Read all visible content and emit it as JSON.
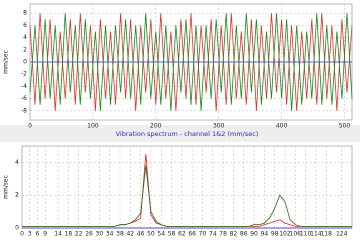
{
  "chart_data": [
    {
      "type": "line",
      "y_label": "mm/sec",
      "xlim": [
        0,
        512
      ],
      "ylim": [
        -9.5,
        9.5
      ],
      "xticks": [
        0,
        100,
        200,
        300,
        400,
        500
      ],
      "yticks": [
        8,
        6,
        4,
        2,
        0,
        -2,
        -4,
        -6,
        -8
      ],
      "grid": true,
      "x": [
        0,
        8,
        16,
        24,
        32,
        40,
        48,
        56,
        64,
        72,
        80,
        88,
        96,
        104,
        112,
        120,
        128,
        136,
        144,
        152,
        160,
        168,
        176,
        184,
        192,
        200,
        208,
        216,
        224,
        232,
        240,
        248,
        256,
        264,
        272,
        280,
        288,
        296,
        304,
        312,
        320,
        328,
        336,
        344,
        352,
        360,
        368,
        376,
        384,
        392,
        400,
        408,
        416,
        424,
        432,
        440,
        448,
        456,
        464,
        472,
        480,
        488,
        496,
        504,
        512
      ],
      "series": [
        {
          "color": "#e03030",
          "values": [
            6,
            -7,
            8,
            -6,
            7,
            -8,
            5,
            -6,
            7,
            -7,
            8,
            -5,
            6,
            -8,
            7,
            -6,
            5,
            -7,
            8,
            -6,
            7,
            -8,
            6,
            -5,
            7,
            -7,
            8,
            -6,
            5,
            -8,
            7,
            -6,
            8,
            -7,
            6,
            -5,
            7,
            -8,
            6,
            -7,
            8,
            -6,
            5,
            -7,
            7,
            -8,
            6,
            -6,
            8,
            -5,
            7,
            -7,
            6,
            -8,
            5,
            -6,
            7,
            -7,
            8,
            -6,
            6,
            -8,
            7,
            -5,
            6
          ]
        },
        {
          "color": "#1a8a1a",
          "values": [
            -5,
            6,
            -7,
            7,
            -6,
            6,
            -7,
            8,
            -5,
            6,
            -7,
            7,
            -6,
            5,
            -8,
            6,
            -7,
            6,
            -5,
            7,
            -6,
            6,
            -7,
            8,
            -6,
            5,
            -7,
            6,
            -8,
            6,
            -5,
            7,
            -7,
            6,
            -8,
            6,
            -6,
            7,
            -5,
            8,
            -7,
            6,
            -6,
            8,
            -5,
            7,
            -7,
            5,
            -6,
            8,
            -6,
            7,
            -8,
            6,
            -7,
            5,
            -6,
            8,
            -7,
            6,
            -7,
            5,
            -6,
            8,
            -6
          ]
        }
      ]
    },
    {
      "type": "line",
      "title": "Vibration spectrum - channel 1&2 (mm/sec)",
      "y_label": "mm/sec",
      "xlim": [
        0,
        128
      ],
      "ylim": [
        0,
        5
      ],
      "xticks": [
        0,
        3,
        6,
        9,
        14,
        18,
        22,
        26,
        30,
        34,
        38,
        42,
        46,
        50,
        54,
        58,
        62,
        66,
        70,
        74,
        78,
        82,
        86,
        90,
        94,
        98,
        102,
        106,
        110,
        114,
        118,
        124
      ],
      "yticks": [
        4,
        2,
        0
      ],
      "grid": true,
      "x": [
        0,
        2,
        4,
        6,
        8,
        10,
        12,
        14,
        16,
        18,
        20,
        22,
        24,
        26,
        28,
        30,
        32,
        34,
        36,
        38,
        40,
        42,
        44,
        46,
        48,
        50,
        52,
        54,
        56,
        58,
        60,
        62,
        64,
        66,
        68,
        70,
        72,
        74,
        76,
        78,
        80,
        82,
        84,
        86,
        88,
        90,
        92,
        94,
        96,
        98,
        100,
        102,
        104,
        106,
        108,
        110,
        112,
        114,
        116,
        118,
        120,
        122,
        124,
        126,
        128
      ],
      "series": [
        {
          "color": "#e02020",
          "values": [
            0.1,
            0.1,
            0.1,
            0.1,
            0.1,
            0.1,
            0.1,
            0.1,
            0.1,
            0.1,
            0.1,
            0.1,
            0.1,
            0.1,
            0.1,
            0.1,
            0.1,
            0.1,
            0.1,
            0.2,
            0.2,
            0.3,
            0.4,
            0.6,
            4.5,
            0.8,
            0.3,
            0.2,
            0.1,
            0.1,
            0.1,
            0.1,
            0.1,
            0.1,
            0.1,
            0.1,
            0.1,
            0.1,
            0.1,
            0.1,
            0.1,
            0.1,
            0.1,
            0.1,
            0.1,
            0.1,
            0.1,
            0.2,
            0.3,
            0.4,
            0.5,
            0.3,
            0.2,
            0.1,
            0.1,
            0.1,
            0.1,
            0.1,
            0.1,
            0.1,
            0.1,
            0.1,
            0.1,
            0.1,
            0.1
          ]
        },
        {
          "color": "#2a6a1a",
          "values": [
            0.1,
            0.1,
            0.1,
            0.1,
            0.1,
            0.1,
            0.1,
            0.1,
            0.1,
            0.1,
            0.1,
            0.1,
            0.1,
            0.1,
            0.1,
            0.1,
            0.1,
            0.1,
            0.1,
            0.2,
            0.2,
            0.3,
            0.5,
            0.9,
            3.8,
            1.0,
            0.4,
            0.2,
            0.1,
            0.1,
            0.1,
            0.1,
            0.1,
            0.1,
            0.1,
            0.1,
            0.1,
            0.1,
            0.1,
            0.1,
            0.1,
            0.1,
            0.1,
            0.1,
            0.1,
            0.2,
            0.2,
            0.3,
            0.6,
            1.2,
            2.0,
            1.6,
            0.5,
            0.2,
            0.1,
            0.1,
            0.1,
            0.1,
            0.1,
            0.1,
            0.1,
            0.1,
            0.1,
            0.1,
            0.1
          ]
        }
      ]
    }
  ]
}
